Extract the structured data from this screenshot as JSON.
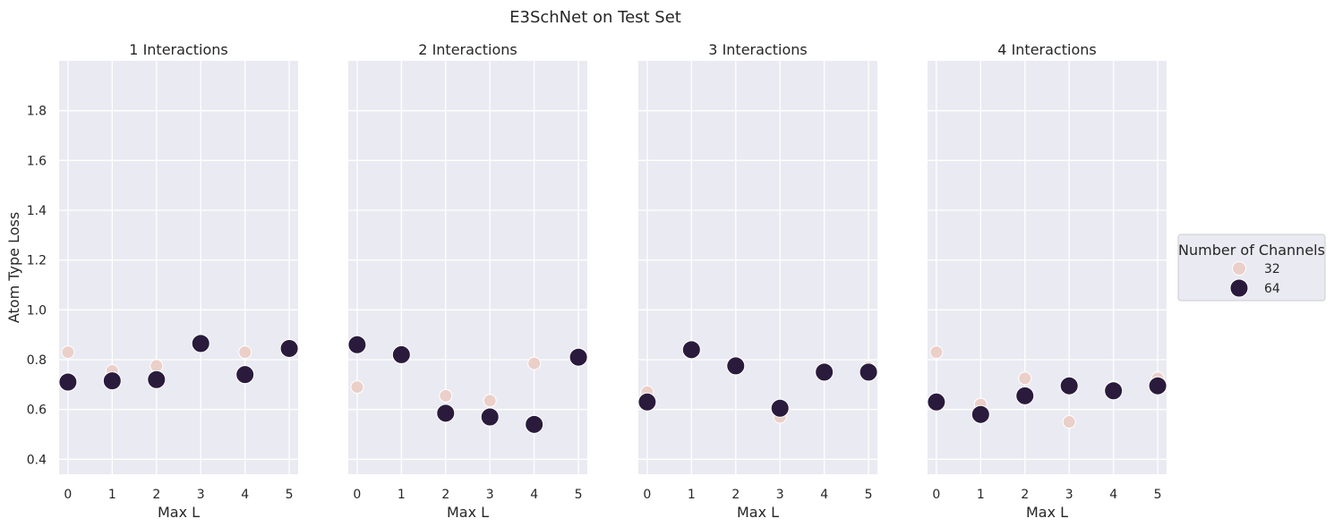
{
  "figure": {
    "title": "E3SchNet on Test Set"
  },
  "legend": {
    "title": "Number of Channels",
    "placement": "right",
    "entries": [
      {
        "label": "32",
        "color": "#ebcfc9",
        "size": "small"
      },
      {
        "label": "64",
        "color": "#2a1b3d",
        "size": "large"
      }
    ]
  },
  "colors": {
    "panel_background": "#eaeaf2",
    "grid": "#ffffff",
    "marker_edge": "#ffffff",
    "series_32": "#ebcfc9",
    "series_64": "#2a1b3d"
  },
  "chart_data": [
    {
      "type": "scatter",
      "title": "1 Interactions",
      "xlabel": "Max L",
      "ylabel": "Atom Type Loss",
      "x_ticks": [
        "0",
        "1",
        "2",
        "3",
        "4",
        "5"
      ],
      "y_ticks": [
        "0.4",
        "0.6",
        "0.8",
        "1.0",
        "1.2",
        "1.4",
        "1.6",
        "1.8"
      ],
      "xlim": [
        -0.2,
        5.2
      ],
      "ylim": [
        0.34,
        2.0
      ],
      "grid": true,
      "series": [
        {
          "name": "32",
          "points": [
            [
              0,
              0.83
            ],
            [
              1,
              0.755
            ],
            [
              2,
              0.775
            ],
            [
              4,
              0.83
            ],
            [
              5,
              0.845
            ]
          ]
        },
        {
          "name": "64",
          "points": [
            [
              0,
              0.71
            ],
            [
              1,
              0.715
            ],
            [
              2,
              0.72
            ],
            [
              3,
              0.865
            ],
            [
              4,
              0.74
            ],
            [
              5,
              0.845
            ]
          ]
        }
      ]
    },
    {
      "type": "scatter",
      "title": "2 Interactions",
      "xlabel": "Max L",
      "ylabel": "",
      "x_ticks": [
        "0",
        "1",
        "2",
        "3",
        "4",
        "5"
      ],
      "y_ticks": [],
      "xlim": [
        -0.2,
        5.2
      ],
      "ylim": [
        0.34,
        2.0
      ],
      "grid": true,
      "series": [
        {
          "name": "32",
          "points": [
            [
              0,
              0.69
            ],
            [
              2,
              0.655
            ],
            [
              3,
              0.635
            ],
            [
              4,
              0.785
            ],
            [
              5,
              0.8
            ]
          ]
        },
        {
          "name": "64",
          "points": [
            [
              0,
              0.86
            ],
            [
              1,
              0.82
            ],
            [
              2,
              0.585
            ],
            [
              3,
              0.57
            ],
            [
              4,
              0.54
            ],
            [
              5,
              0.81
            ]
          ]
        }
      ]
    },
    {
      "type": "scatter",
      "title": "3 Interactions",
      "xlabel": "Max L",
      "ylabel": "",
      "x_ticks": [
        "0",
        "1",
        "2",
        "3",
        "4",
        "5"
      ],
      "y_ticks": [],
      "xlim": [
        -0.2,
        5.2
      ],
      "ylim": [
        0.34,
        2.0
      ],
      "grid": true,
      "series": [
        {
          "name": "32",
          "points": [
            [
              0,
              0.67
            ],
            [
              3,
              0.57
            ],
            [
              4,
              0.75
            ],
            [
              5,
              0.77
            ]
          ]
        },
        {
          "name": "64",
          "points": [
            [
              0,
              0.63
            ],
            [
              1,
              0.84
            ],
            [
              2,
              0.775
            ],
            [
              3,
              0.605
            ],
            [
              4,
              0.75
            ],
            [
              5,
              0.75
            ]
          ]
        }
      ]
    },
    {
      "type": "scatter",
      "title": "4 Interactions",
      "xlabel": "Max L",
      "ylabel": "",
      "x_ticks": [
        "0",
        "1",
        "2",
        "3",
        "4",
        "5"
      ],
      "y_ticks": [],
      "xlim": [
        -0.2,
        5.2
      ],
      "ylim": [
        0.34,
        2.0
      ],
      "grid": true,
      "series": [
        {
          "name": "32",
          "points": [
            [
              0,
              0.83
            ],
            [
              1,
              0.62
            ],
            [
              2,
              0.725
            ],
            [
              3,
              0.55
            ],
            [
              4,
              0.69
            ],
            [
              5,
              0.725
            ]
          ]
        },
        {
          "name": "64",
          "points": [
            [
              0,
              0.63
            ],
            [
              1,
              0.58
            ],
            [
              2,
              0.655
            ],
            [
              3,
              0.695
            ],
            [
              4,
              0.675
            ],
            [
              5,
              0.695
            ]
          ]
        }
      ]
    }
  ]
}
